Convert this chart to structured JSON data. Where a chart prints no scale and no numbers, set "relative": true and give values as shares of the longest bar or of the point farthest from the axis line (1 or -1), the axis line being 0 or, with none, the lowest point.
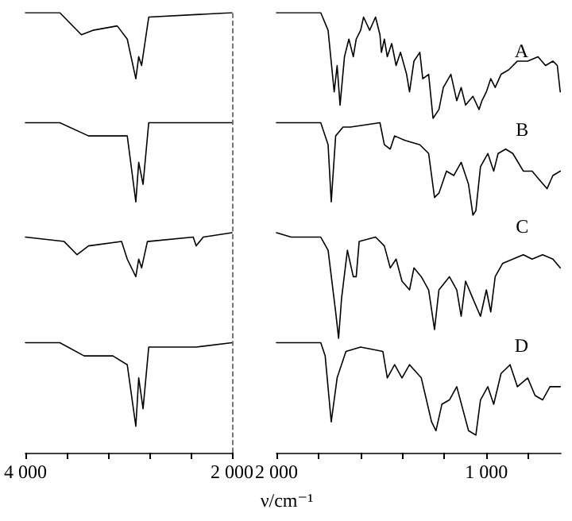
{
  "chart_data": [
    {
      "type": "line",
      "relative": true,
      "xlim": [
        4000,
        2000
      ],
      "xticks": [
        {
          "value": 4000,
          "label": "4 000"
        },
        {
          "value": 3600,
          "label": null
        },
        {
          "value": 3200,
          "label": null
        },
        {
          "value": 2800,
          "label": null
        },
        {
          "value": 2400,
          "label": null
        },
        {
          "value": 2000,
          "label": "2 000"
        }
      ],
      "tick_labels": "x",
      "grid": false,
      "legend": false,
      "marker": "none",
      "line_style": "solid",
      "ref_lines": [
        {
          "axis": "x",
          "value": 2000,
          "color": "#555555",
          "line_style": "dashed"
        }
      ],
      "series": [
        {
          "color": "#000000",
          "x": [
            4000,
            3667,
            3458,
            3347,
            3111,
            3014,
            2931,
            2903,
            2875,
            2806,
            2000
          ],
          "values": [
            1.0,
            1.0,
            0.95,
            0.96,
            0.97,
            0.94,
            0.85,
            0.9,
            0.88,
            0.99,
            1.0
          ]
        },
        {
          "color": "#000000",
          "x": [
            4000,
            3667,
            3389,
            3153,
            3014,
            2931,
            2903,
            2861,
            2806,
            2000
          ],
          "values": [
            0.75,
            0.75,
            0.72,
            0.72,
            0.72,
            0.57,
            0.66,
            0.61,
            0.75,
            0.75
          ]
        },
        {
          "color": "#000000",
          "x": [
            4000,
            3625,
            3500,
            3389,
            3069,
            3014,
            2931,
            2903,
            2875,
            2819,
            2375,
            2347,
            2278,
            2000
          ],
          "values": [
            0.49,
            0.48,
            0.45,
            0.47,
            0.48,
            0.44,
            0.4,
            0.44,
            0.42,
            0.48,
            0.49,
            0.47,
            0.49,
            0.5
          ]
        },
        {
          "color": "#000000",
          "x": [
            4000,
            3667,
            3431,
            3153,
            3014,
            2931,
            2903,
            2861,
            2806,
            2347,
            2000
          ],
          "values": [
            0.25,
            0.25,
            0.22,
            0.22,
            0.2,
            0.06,
            0.17,
            0.1,
            0.24,
            0.24,
            0.25
          ]
        }
      ]
    },
    {
      "type": "line",
      "relative": true,
      "xlabel": "ν/cm⁻¹",
      "xlim": [
        2000,
        645
      ],
      "xticks": [
        {
          "value": 2000,
          "label": "2 000"
        },
        {
          "value": 1800,
          "label": null
        },
        {
          "value": 1600,
          "label": null
        },
        {
          "value": 1400,
          "label": null
        },
        {
          "value": 1200,
          "label": null
        },
        {
          "value": 1000,
          "label": "1 000"
        },
        {
          "value": 800,
          "label": null
        }
      ],
      "tick_labels": "x",
      "grid": false,
      "legend": false,
      "marker": "none",
      "line_style": "solid",
      "series": [
        {
          "name": "A",
          "color": "#000000",
          "x": [
            2000,
            1930,
            1789,
            1754,
            1725,
            1711,
            1697,
            1676,
            1655,
            1634,
            1620,
            1599,
            1585,
            1556,
            1528,
            1507,
            1500,
            1486,
            1472,
            1451,
            1430,
            1409,
            1380,
            1366,
            1345,
            1317,
            1303,
            1275,
            1254,
            1226,
            1205,
            1169,
            1141,
            1120,
            1099,
            1064,
            1035,
            1021,
            1000,
            979,
            958,
            930,
            894,
            852,
            803,
            754,
            718,
            683,
            662,
            648
          ],
          "values": [
            1.0,
            1.0,
            1.0,
            0.96,
            0.82,
            0.88,
            0.79,
            0.9,
            0.94,
            0.9,
            0.94,
            0.96,
            0.99,
            0.96,
            0.99,
            0.95,
            0.91,
            0.94,
            0.9,
            0.93,
            0.88,
            0.91,
            0.86,
            0.82,
            0.89,
            0.91,
            0.85,
            0.86,
            0.76,
            0.78,
            0.83,
            0.86,
            0.8,
            0.83,
            0.79,
            0.81,
            0.78,
            0.8,
            0.82,
            0.85,
            0.83,
            0.86,
            0.87,
            0.89,
            0.89,
            0.9,
            0.88,
            0.89,
            0.88,
            0.82
          ]
        },
        {
          "name": "B",
          "color": "#000000",
          "x": [
            2000,
            1930,
            1789,
            1754,
            1739,
            1718,
            1683,
            1648,
            1507,
            1486,
            1458,
            1437,
            1388,
            1317,
            1275,
            1247,
            1226,
            1190,
            1155,
            1120,
            1085,
            1064,
            1050,
            1028,
            993,
            965,
            944,
            908,
            874,
            824,
            782,
            747,
            711,
            683,
            648
          ],
          "values": [
            0.75,
            0.75,
            0.75,
            0.7,
            0.57,
            0.72,
            0.74,
            0.74,
            0.75,
            0.7,
            0.69,
            0.72,
            0.71,
            0.7,
            0.68,
            0.58,
            0.59,
            0.64,
            0.63,
            0.66,
            0.61,
            0.54,
            0.55,
            0.65,
            0.68,
            0.64,
            0.68,
            0.69,
            0.68,
            0.64,
            0.64,
            0.62,
            0.6,
            0.63,
            0.64
          ]
        },
        {
          "name": "C",
          "color": "#000000",
          "x": [
            2000,
            1930,
            1789,
            1754,
            1718,
            1704,
            1690,
            1662,
            1634,
            1620,
            1606,
            1528,
            1486,
            1458,
            1430,
            1402,
            1366,
            1345,
            1310,
            1275,
            1247,
            1226,
            1176,
            1141,
            1120,
            1099,
            1064,
            1028,
            1000,
            979,
            958,
            923,
            874,
            824,
            782,
            732,
            683,
            648
          ],
          "values": [
            0.5,
            0.49,
            0.49,
            0.46,
            0.32,
            0.26,
            0.35,
            0.46,
            0.4,
            0.4,
            0.48,
            0.49,
            0.47,
            0.42,
            0.44,
            0.39,
            0.37,
            0.42,
            0.4,
            0.37,
            0.28,
            0.37,
            0.4,
            0.37,
            0.31,
            0.39,
            0.35,
            0.31,
            0.37,
            0.32,
            0.4,
            0.43,
            0.44,
            0.45,
            0.44,
            0.45,
            0.44,
            0.42
          ]
        },
        {
          "name": "D",
          "color": "#000000",
          "x": [
            2000,
            1930,
            1789,
            1768,
            1739,
            1711,
            1669,
            1599,
            1493,
            1472,
            1437,
            1402,
            1366,
            1310,
            1261,
            1240,
            1212,
            1176,
            1141,
            1113,
            1085,
            1050,
            1028,
            993,
            965,
            930,
            887,
            852,
            803,
            768,
            732,
            697,
            648
          ],
          "values": [
            0.25,
            0.25,
            0.25,
            0.22,
            0.07,
            0.17,
            0.23,
            0.24,
            0.23,
            0.17,
            0.2,
            0.17,
            0.2,
            0.17,
            0.07,
            0.05,
            0.11,
            0.12,
            0.15,
            0.1,
            0.05,
            0.04,
            0.12,
            0.15,
            0.11,
            0.18,
            0.2,
            0.15,
            0.17,
            0.13,
            0.12,
            0.15,
            0.15
          ]
        }
      ]
    }
  ]
}
